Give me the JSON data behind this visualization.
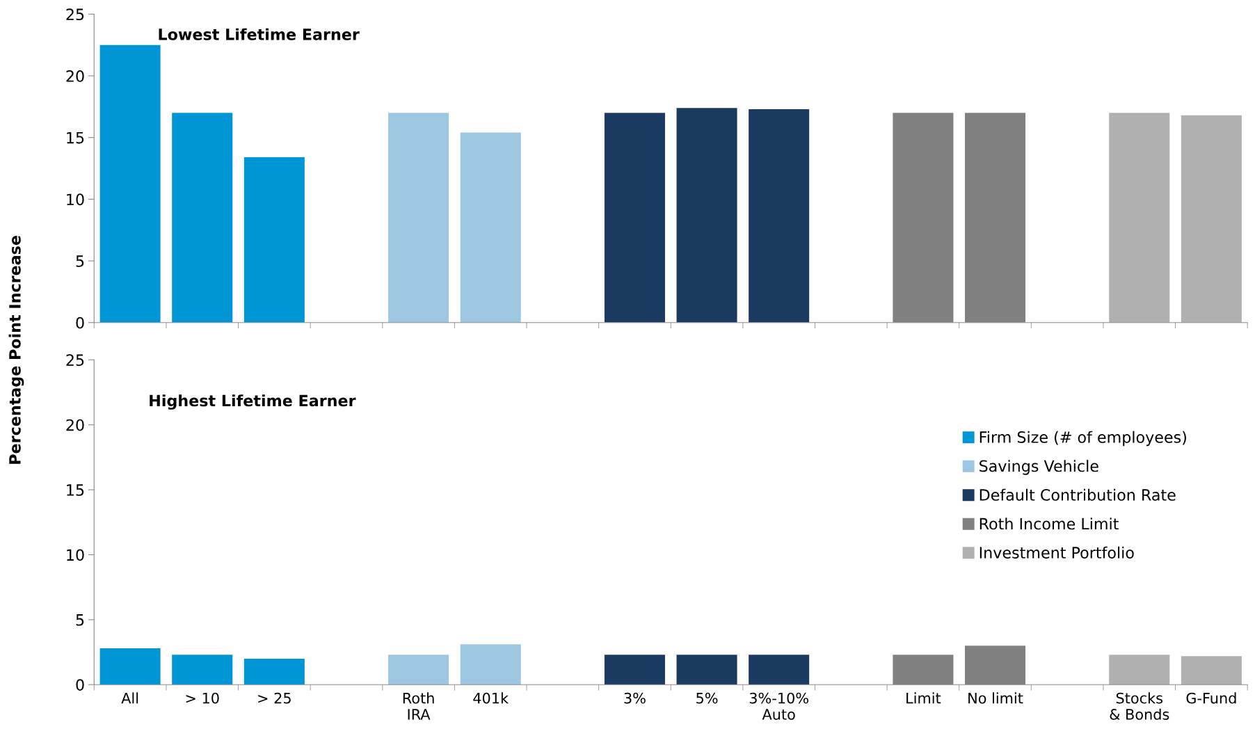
{
  "chart_data": [
    {
      "type": "bar",
      "title": "Lowest Lifetime Earner",
      "ylabel": "Percentage Point Increase",
      "tick_labels": "y",
      "categories": [
        null,
        null,
        null,
        null,
        null,
        null,
        null,
        null,
        null,
        null,
        null,
        null,
        null,
        null,
        null,
        null
      ],
      "ylim": [
        0,
        25
      ],
      "yticks": [
        0,
        5,
        10,
        15,
        20,
        25
      ],
      "grid": false,
      "legend": false,
      "series": [
        {
          "color": "#0096d6",
          "values": [
            22.5,
            17,
            13.4,
            null,
            null,
            null,
            null,
            null,
            null,
            null,
            null,
            null,
            null,
            null,
            null,
            null
          ]
        },
        {
          "color": "#9dc6e0",
          "values": [
            null,
            null,
            null,
            null,
            17,
            15.4,
            null,
            null,
            null,
            null,
            null,
            null,
            null,
            null,
            null,
            null
          ]
        },
        {
          "color": "#1a3a60",
          "values": [
            null,
            null,
            null,
            null,
            null,
            null,
            null,
            17,
            17.4,
            17.3,
            null,
            null,
            null,
            null,
            null,
            null
          ]
        },
        {
          "color": "#808080",
          "values": [
            null,
            null,
            null,
            null,
            null,
            null,
            null,
            null,
            null,
            null,
            null,
            17,
            17,
            null,
            null,
            null
          ]
        },
        {
          "color": "#b0b0b0",
          "values": [
            null,
            null,
            null,
            null,
            null,
            null,
            null,
            null,
            null,
            null,
            null,
            null,
            null,
            null,
            17,
            16.8
          ]
        }
      ]
    },
    {
      "type": "bar",
      "title": "Highest Lifetime Earner",
      "categories": [
        "All",
        "> 10",
        "> 25",
        null,
        "Roth\nIRA",
        "401k",
        null,
        "3%",
        "5%",
        "3%-10%\nAuto",
        null,
        "Limit",
        "No limit",
        null,
        "Stocks\n& Bonds",
        "G-Fund"
      ],
      "ylim": [
        0,
        25
      ],
      "yticks": [
        0,
        5,
        10,
        15,
        20,
        25
      ],
      "grid": false,
      "legend": "right",
      "series": [
        {
          "name": "Firm Size (# of employees)",
          "color": "#0096d6",
          "values": [
            2.8,
            2.3,
            2.0,
            null,
            null,
            null,
            null,
            null,
            null,
            null,
            null,
            null,
            null,
            null,
            null,
            null
          ]
        },
        {
          "name": "Savings Vehicle",
          "color": "#9dc6e0",
          "values": [
            null,
            null,
            null,
            null,
            2.3,
            3.1,
            null,
            null,
            null,
            null,
            null,
            null,
            null,
            null,
            null,
            null
          ]
        },
        {
          "name": "Default Contribution Rate",
          "color": "#1a3a60",
          "values": [
            null,
            null,
            null,
            null,
            null,
            null,
            null,
            2.3,
            2.3,
            2.3,
            null,
            null,
            null,
            null,
            null,
            null
          ]
        },
        {
          "name": "Roth Income Limit",
          "color": "#808080",
          "values": [
            null,
            null,
            null,
            null,
            null,
            null,
            null,
            null,
            null,
            null,
            null,
            2.3,
            3.0,
            null,
            null,
            null
          ]
        },
        {
          "name": "Investment Portfolio",
          "color": "#b0b0b0",
          "values": [
            null,
            null,
            null,
            null,
            null,
            null,
            null,
            null,
            null,
            null,
            null,
            null,
            null,
            null,
            2.3,
            2.2
          ]
        }
      ]
    }
  ]
}
